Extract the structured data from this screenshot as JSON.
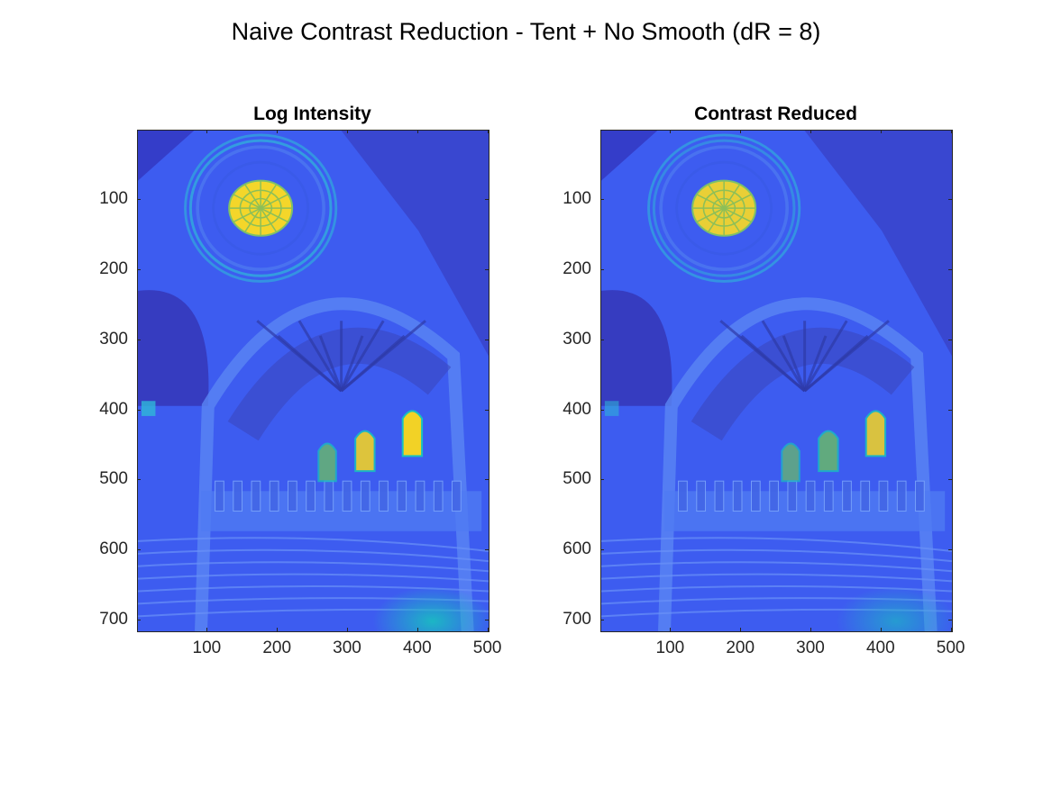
{
  "figure": {
    "title": "Naive Contrast Reduction - Tent + No Smooth (dR = 8)"
  },
  "chart_data": [
    {
      "type": "heatmap",
      "title": "Log Intensity",
      "xlabel": "",
      "ylabel": "",
      "xlim": [
        0.5,
        500.5
      ],
      "ylim": [
        0.5,
        715.5
      ],
      "y_reversed": true,
      "xticks": [
        100,
        200,
        300,
        400,
        500
      ],
      "yticks": [
        100,
        200,
        300,
        400,
        500,
        600,
        700
      ],
      "colormap": "parula",
      "image": "memorial-church-interior",
      "highlight_strength": 1.0,
      "grid": false
    },
    {
      "type": "heatmap",
      "title": "Contrast Reduced",
      "xlabel": "",
      "ylabel": "",
      "xlim": [
        0.5,
        500.5
      ],
      "ylim": [
        0.5,
        715.5
      ],
      "y_reversed": true,
      "xticks": [
        100,
        200,
        300,
        400,
        500
      ],
      "yticks": [
        100,
        200,
        300,
        400,
        500,
        600,
        700
      ],
      "colormap": "parula",
      "image": "memorial-church-interior",
      "highlight_strength": 0.7,
      "grid": false
    }
  ],
  "colors": {
    "base_blue": "#3d5cf0",
    "dark_blue": "#3030b8",
    "cyan": "#2fb8d8",
    "teal": "#18c0c0",
    "green": "#6cc060",
    "yellow": "#f2d226",
    "axis": "#262626"
  }
}
